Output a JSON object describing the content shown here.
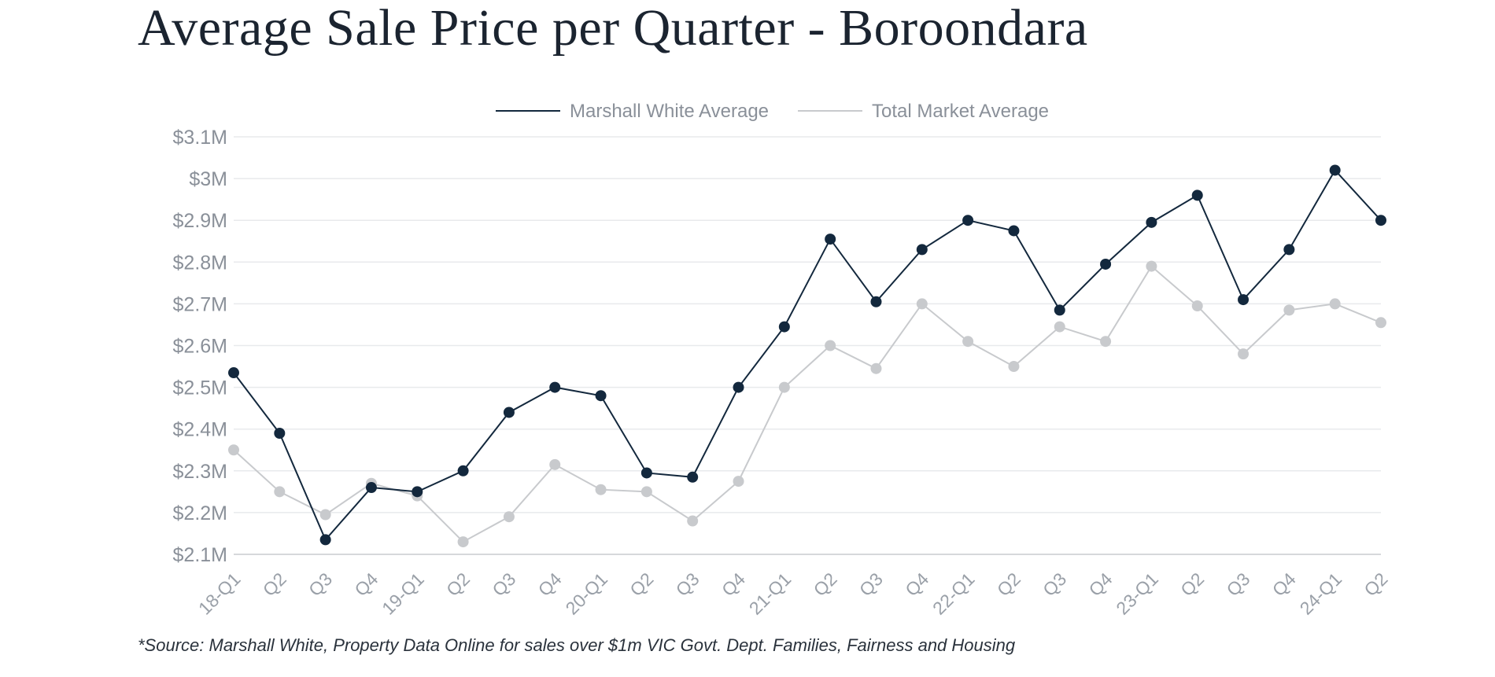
{
  "title": "Average Sale Price per Quarter - Boroondara",
  "source_note": "*Source: Marshall White, Property Data Online for sales over $1m VIC Govt. Dept. Families, Fairness and Housing",
  "chart_data": {
    "type": "line",
    "title": "Average Sale Price per Quarter - Boroondara",
    "xlabel": "",
    "ylabel": "",
    "categories": [
      "18-Q1",
      "Q2",
      "Q3",
      "Q4",
      "19-Q1",
      "Q2",
      "Q3",
      "Q4",
      "20-Q1",
      "Q2",
      "Q3",
      "Q4",
      "21-Q1",
      "Q2",
      "Q3",
      "Q4",
      "22-Q1",
      "Q2",
      "Q3",
      "Q4",
      "23-Q1",
      "Q2",
      "Q3",
      "Q4",
      "24-Q1",
      "Q2"
    ],
    "y_ticks": [
      "$2.1M",
      "$2.2M",
      "$2.3M",
      "$2.4M",
      "$2.5M",
      "$2.6M",
      "$2.7M",
      "$2.8M",
      "$2.9M",
      "$3M",
      "$3.1M"
    ],
    "ylim": [
      2.1,
      3.1
    ],
    "y_unit": "$M",
    "grid": true,
    "legend_position": "top-center",
    "series": [
      {
        "name": "Marshall White Average",
        "color": "#13283d",
        "values": [
          2.535,
          2.39,
          2.135,
          2.26,
          2.25,
          2.3,
          2.44,
          2.5,
          2.48,
          2.295,
          2.285,
          2.5,
          2.645,
          2.855,
          2.705,
          2.83,
          2.9,
          2.875,
          2.685,
          2.795,
          2.895,
          2.96,
          2.71,
          2.83,
          3.02,
          2.9
        ]
      },
      {
        "name": "Total Market Average",
        "color": "#c8cacd",
        "values": [
          2.35,
          2.25,
          2.195,
          2.27,
          2.24,
          2.13,
          2.19,
          2.315,
          2.255,
          2.25,
          2.18,
          2.275,
          2.5,
          2.6,
          2.545,
          2.7,
          2.61,
          2.55,
          2.645,
          2.61,
          2.79,
          2.695,
          2.58,
          2.685,
          2.7,
          2.655
        ]
      }
    ]
  }
}
